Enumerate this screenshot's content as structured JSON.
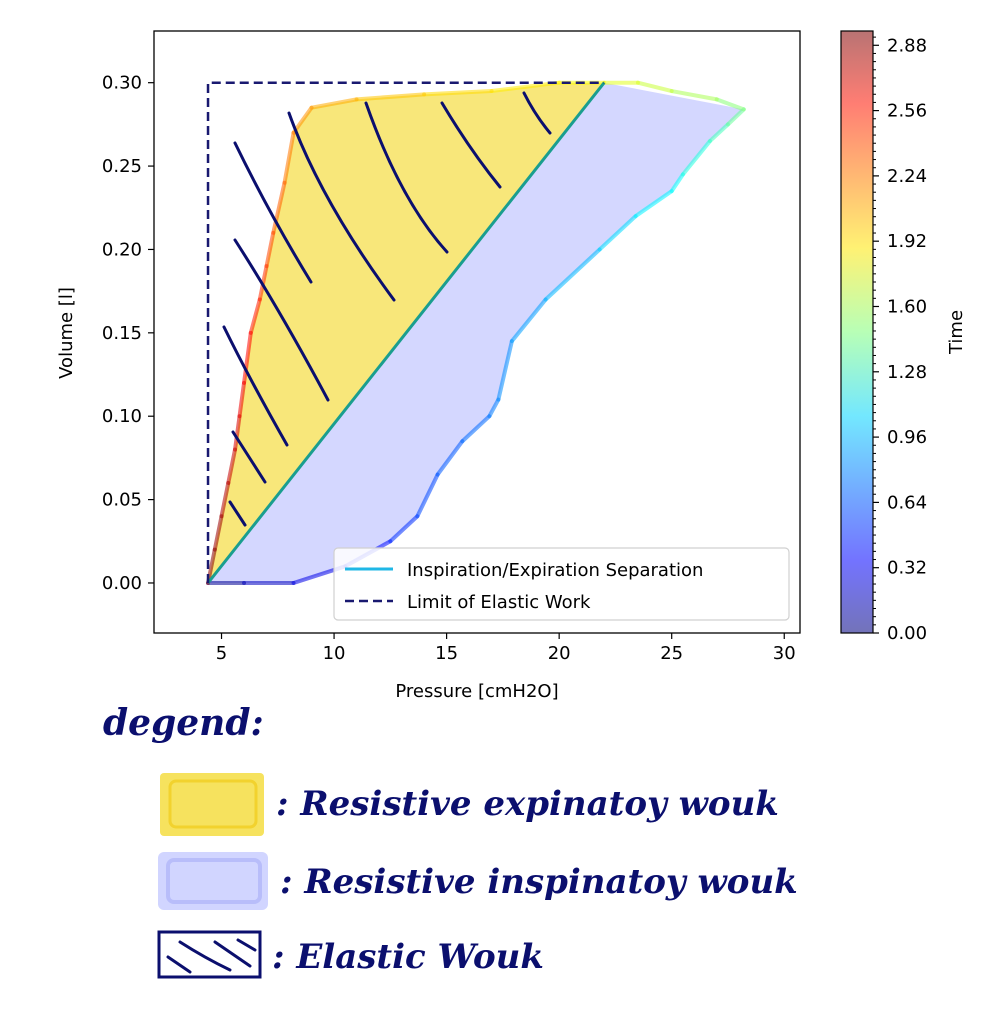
{
  "chart_data": {
    "type": "line",
    "title": "",
    "xlabel": "Pressure [cmH2O]",
    "ylabel": "Volume [l]",
    "xlim": [
      2,
      30.7
    ],
    "ylim": [
      -0.03,
      0.331
    ],
    "xticks": [
      5,
      10,
      15,
      20,
      25,
      30
    ],
    "yticks": [
      0.0,
      0.05,
      0.1,
      0.15,
      0.2,
      0.25,
      0.3
    ],
    "xtick_labels": [
      "5",
      "10",
      "15",
      "20",
      "25",
      "30"
    ],
    "ytick_labels": [
      "0.00",
      "0.05",
      "0.10",
      "0.15",
      "0.20",
      "0.25",
      "0.30"
    ],
    "grid": false,
    "legend_position": "lower right",
    "colorbar": {
      "label": "Time",
      "range": [
        0.0,
        2.95
      ],
      "ticks": [
        0.0,
        0.32,
        0.64,
        0.96,
        1.28,
        1.6,
        1.92,
        2.24,
        2.56,
        2.88
      ],
      "tick_labels": [
        "0.00",
        "0.32",
        "0.64",
        "0.96",
        "1.28",
        "1.60",
        "1.92",
        "2.24",
        "2.56",
        "2.88"
      ],
      "colormap": "jet"
    },
    "series": [
      {
        "name": "Inspiration/Expiration Separation",
        "style": "solid",
        "color": "#1fb7e6",
        "x": [
          4.4,
          22.0
        ],
        "y": [
          0.0,
          0.3
        ]
      },
      {
        "name": "Limit of Elastic Work",
        "style": "dashed",
        "color": "#191970",
        "x": [
          4.4,
          4.4,
          22.0
        ],
        "y": [
          0.0,
          0.3,
          0.3
        ]
      }
    ],
    "loop": {
      "inspiration": {
        "x": [
          4.4,
          6.0,
          8.2,
          10.5,
          12.5,
          13.7,
          14.6,
          15.7,
          16.9,
          17.3,
          17.9,
          19.4,
          21.8,
          23.4,
          25.0,
          25.5,
          26.7,
          27.5,
          28.2
        ],
        "y": [
          0.0,
          0.0,
          0.0,
          0.01,
          0.025,
          0.04,
          0.065,
          0.085,
          0.1,
          0.11,
          0.145,
          0.17,
          0.2,
          0.22,
          0.235,
          0.245,
          0.265,
          0.275,
          0.284
        ],
        "time": [
          0.0,
          0.12,
          0.25,
          0.35,
          0.45,
          0.55,
          0.6,
          0.65,
          0.7,
          0.75,
          0.8,
          0.85,
          0.95,
          1.05,
          1.1,
          1.15,
          1.25,
          1.35,
          1.45
        ]
      },
      "expiration": {
        "x": [
          28.2,
          27.0,
          25.0,
          23.5,
          22.0,
          20.0,
          17.0,
          14.0,
          11.0,
          9.0,
          8.2,
          7.8,
          7.3,
          7.0,
          6.7,
          6.3,
          6.0,
          5.8,
          5.6,
          5.3,
          5.0,
          4.7,
          4.4
        ],
        "y": [
          0.284,
          0.29,
          0.295,
          0.3,
          0.3,
          0.3,
          0.295,
          0.293,
          0.29,
          0.285,
          0.27,
          0.24,
          0.21,
          0.19,
          0.17,
          0.15,
          0.12,
          0.1,
          0.08,
          0.06,
          0.04,
          0.02,
          0.0
        ],
        "time": [
          1.45,
          1.55,
          1.65,
          1.72,
          1.8,
          1.87,
          1.92,
          1.98,
          2.05,
          2.12,
          2.2,
          2.28,
          2.35,
          2.42,
          2.48,
          2.55,
          2.6,
          2.66,
          2.72,
          2.78,
          2.84,
          2.9,
          2.95
        ]
      }
    }
  },
  "annotations": {
    "legend_title": "degend:",
    "items": [
      {
        "text": ": Resistive expinatoy wouk",
        "color": "#f5df4d"
      },
      {
        "text": ": Resistive inspinatoy wouk",
        "color": "#ccd0ff"
      },
      {
        "text": ": Elastic Wouk",
        "color": "#ffffff"
      }
    ]
  }
}
